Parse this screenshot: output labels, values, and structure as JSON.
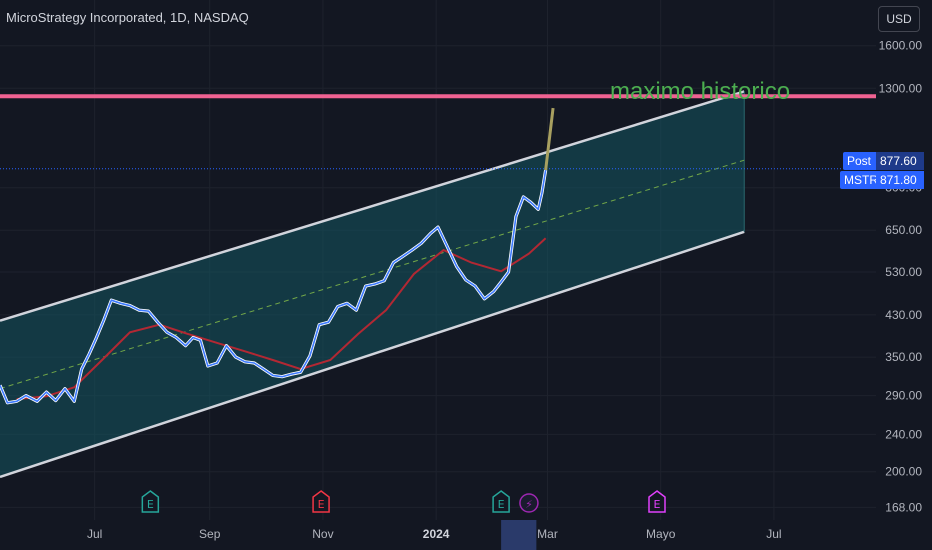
{
  "header": {
    "title": "MicroStrategy Incorporated, 1D, NASDAQ",
    "currency_label": "USD"
  },
  "annotation": {
    "text": "maximo historico",
    "color": "#4caf50"
  },
  "badges": {
    "post_label": "Post",
    "post_value": "877.60",
    "ticker_label": "MSTR",
    "ticker_value": "871.80"
  },
  "colors": {
    "background": "#131722",
    "price_line": "#3d7bff",
    "price_outline": "#ffffff",
    "moving_average": "#b22833",
    "channel_fill": "#145560",
    "channel_border": "#d1d4dc",
    "midline": "#8bc34a",
    "resistance": "#f06292",
    "projection": "#a8a060",
    "axis_text": "#b2b5be"
  },
  "chart_data": {
    "type": "line",
    "title": "MicroStrategy Incorporated, 1D, NASDAQ",
    "xlabel": "",
    "ylabel": "",
    "y_scale": "log",
    "ylim": [
      158,
      2000
    ],
    "xlim": [
      "2023-05-11",
      "2024-08-25"
    ],
    "x_tick_labels": [
      {
        "date": "2023-07-01",
        "label": "Jul"
      },
      {
        "date": "2023-09-01",
        "label": "Sep"
      },
      {
        "date": "2023-11-01",
        "label": "Nov"
      },
      {
        "date": "2024-01-01",
        "label": "2024"
      },
      {
        "date": "2024-03-01",
        "label": "Mar"
      },
      {
        "date": "2024-05-01",
        "label": "Mayo"
      },
      {
        "date": "2024-07-01",
        "label": "Jul"
      }
    ],
    "y_ticks": [
      1600,
      1300,
      800,
      650,
      530,
      430,
      350,
      290,
      240,
      200,
      168
    ],
    "y_tick_labels": [
      "1600.00",
      "1300.00",
      "800.00",
      "650.00",
      "530.00",
      "430.00",
      "350.00",
      "290.00",
      "240.00",
      "200.00",
      "168.00"
    ],
    "series": [
      {
        "points": [
          [
            "2023-05-11",
            305
          ],
          [
            "2023-05-15",
            280
          ],
          [
            "2023-05-20",
            282
          ],
          [
            "2023-05-25",
            290
          ],
          [
            "2023-05-31",
            282
          ],
          [
            "2023-06-05",
            295
          ],
          [
            "2023-06-10",
            283
          ],
          [
            "2023-06-15",
            300
          ],
          [
            "2023-06-20",
            282
          ],
          [
            "2023-06-24",
            330
          ],
          [
            "2023-06-28",
            355
          ],
          [
            "2023-07-02",
            385
          ],
          [
            "2023-07-06",
            420
          ],
          [
            "2023-07-10",
            462
          ],
          [
            "2023-07-15",
            455
          ],
          [
            "2023-07-20",
            450
          ],
          [
            "2023-07-25",
            440
          ],
          [
            "2023-07-30",
            438
          ],
          [
            "2023-08-04",
            415
          ],
          [
            "2023-08-09",
            395
          ],
          [
            "2023-08-14",
            385
          ],
          [
            "2023-08-19",
            370
          ],
          [
            "2023-08-23",
            385
          ],
          [
            "2023-08-27",
            380
          ],
          [
            "2023-08-31",
            335
          ],
          [
            "2023-09-05",
            340
          ],
          [
            "2023-09-10",
            370
          ],
          [
            "2023-09-15",
            350
          ],
          [
            "2023-09-20",
            342
          ],
          [
            "2023-09-25",
            340
          ],
          [
            "2023-09-30",
            330
          ],
          [
            "2023-10-05",
            320
          ],
          [
            "2023-10-10",
            318
          ],
          [
            "2023-10-15",
            322
          ],
          [
            "2023-10-20",
            325
          ],
          [
            "2023-10-25",
            352
          ],
          [
            "2023-10-30",
            410
          ],
          [
            "2023-11-04",
            415
          ],
          [
            "2023-11-09",
            448
          ],
          [
            "2023-11-14",
            455
          ],
          [
            "2023-11-19",
            440
          ],
          [
            "2023-11-24",
            495
          ],
          [
            "2023-11-29",
            500
          ],
          [
            "2023-12-04",
            508
          ],
          [
            "2023-12-09",
            555
          ],
          [
            "2023-12-14",
            572
          ],
          [
            "2023-12-19",
            590
          ],
          [
            "2023-12-24",
            610
          ],
          [
            "2023-12-29",
            640
          ],
          [
            "2024-01-02",
            660
          ],
          [
            "2024-01-07",
            600
          ],
          [
            "2024-01-12",
            545
          ],
          [
            "2024-01-17",
            510
          ],
          [
            "2024-01-22",
            495
          ],
          [
            "2024-01-27",
            465
          ],
          [
            "2024-02-01",
            482
          ],
          [
            "2024-02-05",
            505
          ],
          [
            "2024-02-09",
            530
          ],
          [
            "2024-02-13",
            695
          ],
          [
            "2024-02-17",
            765
          ],
          [
            "2024-02-21",
            745
          ],
          [
            "2024-02-25",
            720
          ],
          [
            "2024-02-27",
            780
          ],
          [
            "2024-02-29",
            871.8
          ]
        ]
      },
      {
        "points": [
          [
            "2023-05-20",
            285
          ],
          [
            "2023-06-05",
            289
          ],
          [
            "2023-06-20",
            302
          ],
          [
            "2023-07-05",
            345
          ],
          [
            "2023-07-20",
            395
          ],
          [
            "2023-08-05",
            410
          ],
          [
            "2023-08-20",
            392
          ],
          [
            "2023-09-05",
            375
          ],
          [
            "2023-09-20",
            360
          ],
          [
            "2023-10-05",
            345
          ],
          [
            "2023-10-20",
            330
          ],
          [
            "2023-11-05",
            345
          ],
          [
            "2023-11-20",
            392
          ],
          [
            "2023-12-05",
            440
          ],
          [
            "2023-12-20",
            525
          ],
          [
            "2024-01-05",
            590
          ],
          [
            "2024-01-20",
            555
          ],
          [
            "2024-02-05",
            532
          ],
          [
            "2024-02-20",
            580
          ],
          [
            "2024-02-29",
            625
          ]
        ]
      }
    ],
    "channel": {
      "upper": [
        [
          "2023-05-11",
          418
        ],
        [
          "2024-06-15",
          1280
        ]
      ],
      "lower": [
        [
          "2023-05-11",
          195
        ],
        [
          "2024-06-15",
          645
        ]
      ],
      "mid": [
        [
          "2023-05-11",
          300
        ],
        [
          "2024-06-15",
          915
        ]
      ]
    },
    "horizontal_lines": [
      {
        "y": 1250,
        "label": "maximo historico"
      },
      {
        "y": 877.6
      }
    ],
    "projection": [
      [
        "2024-02-29",
        871.8
      ],
      [
        "2024-03-04",
        1180
      ]
    ],
    "event_markers": [
      {
        "date": "2023-07-31",
        "label": "E",
        "color": "#26a69a"
      },
      {
        "date": "2023-10-31",
        "label": "E",
        "color": "#f23645"
      },
      {
        "date": "2024-02-05",
        "label": "E",
        "color": "#26a69a"
      },
      {
        "date": "2024-02-20",
        "label": "⚡",
        "color": "#9c27b0"
      },
      {
        "date": "2024-04-29",
        "label": "E",
        "color": "#e040fb"
      }
    ],
    "highlighted_x_range": [
      "2024-02-05",
      "2024-02-24"
    ]
  }
}
